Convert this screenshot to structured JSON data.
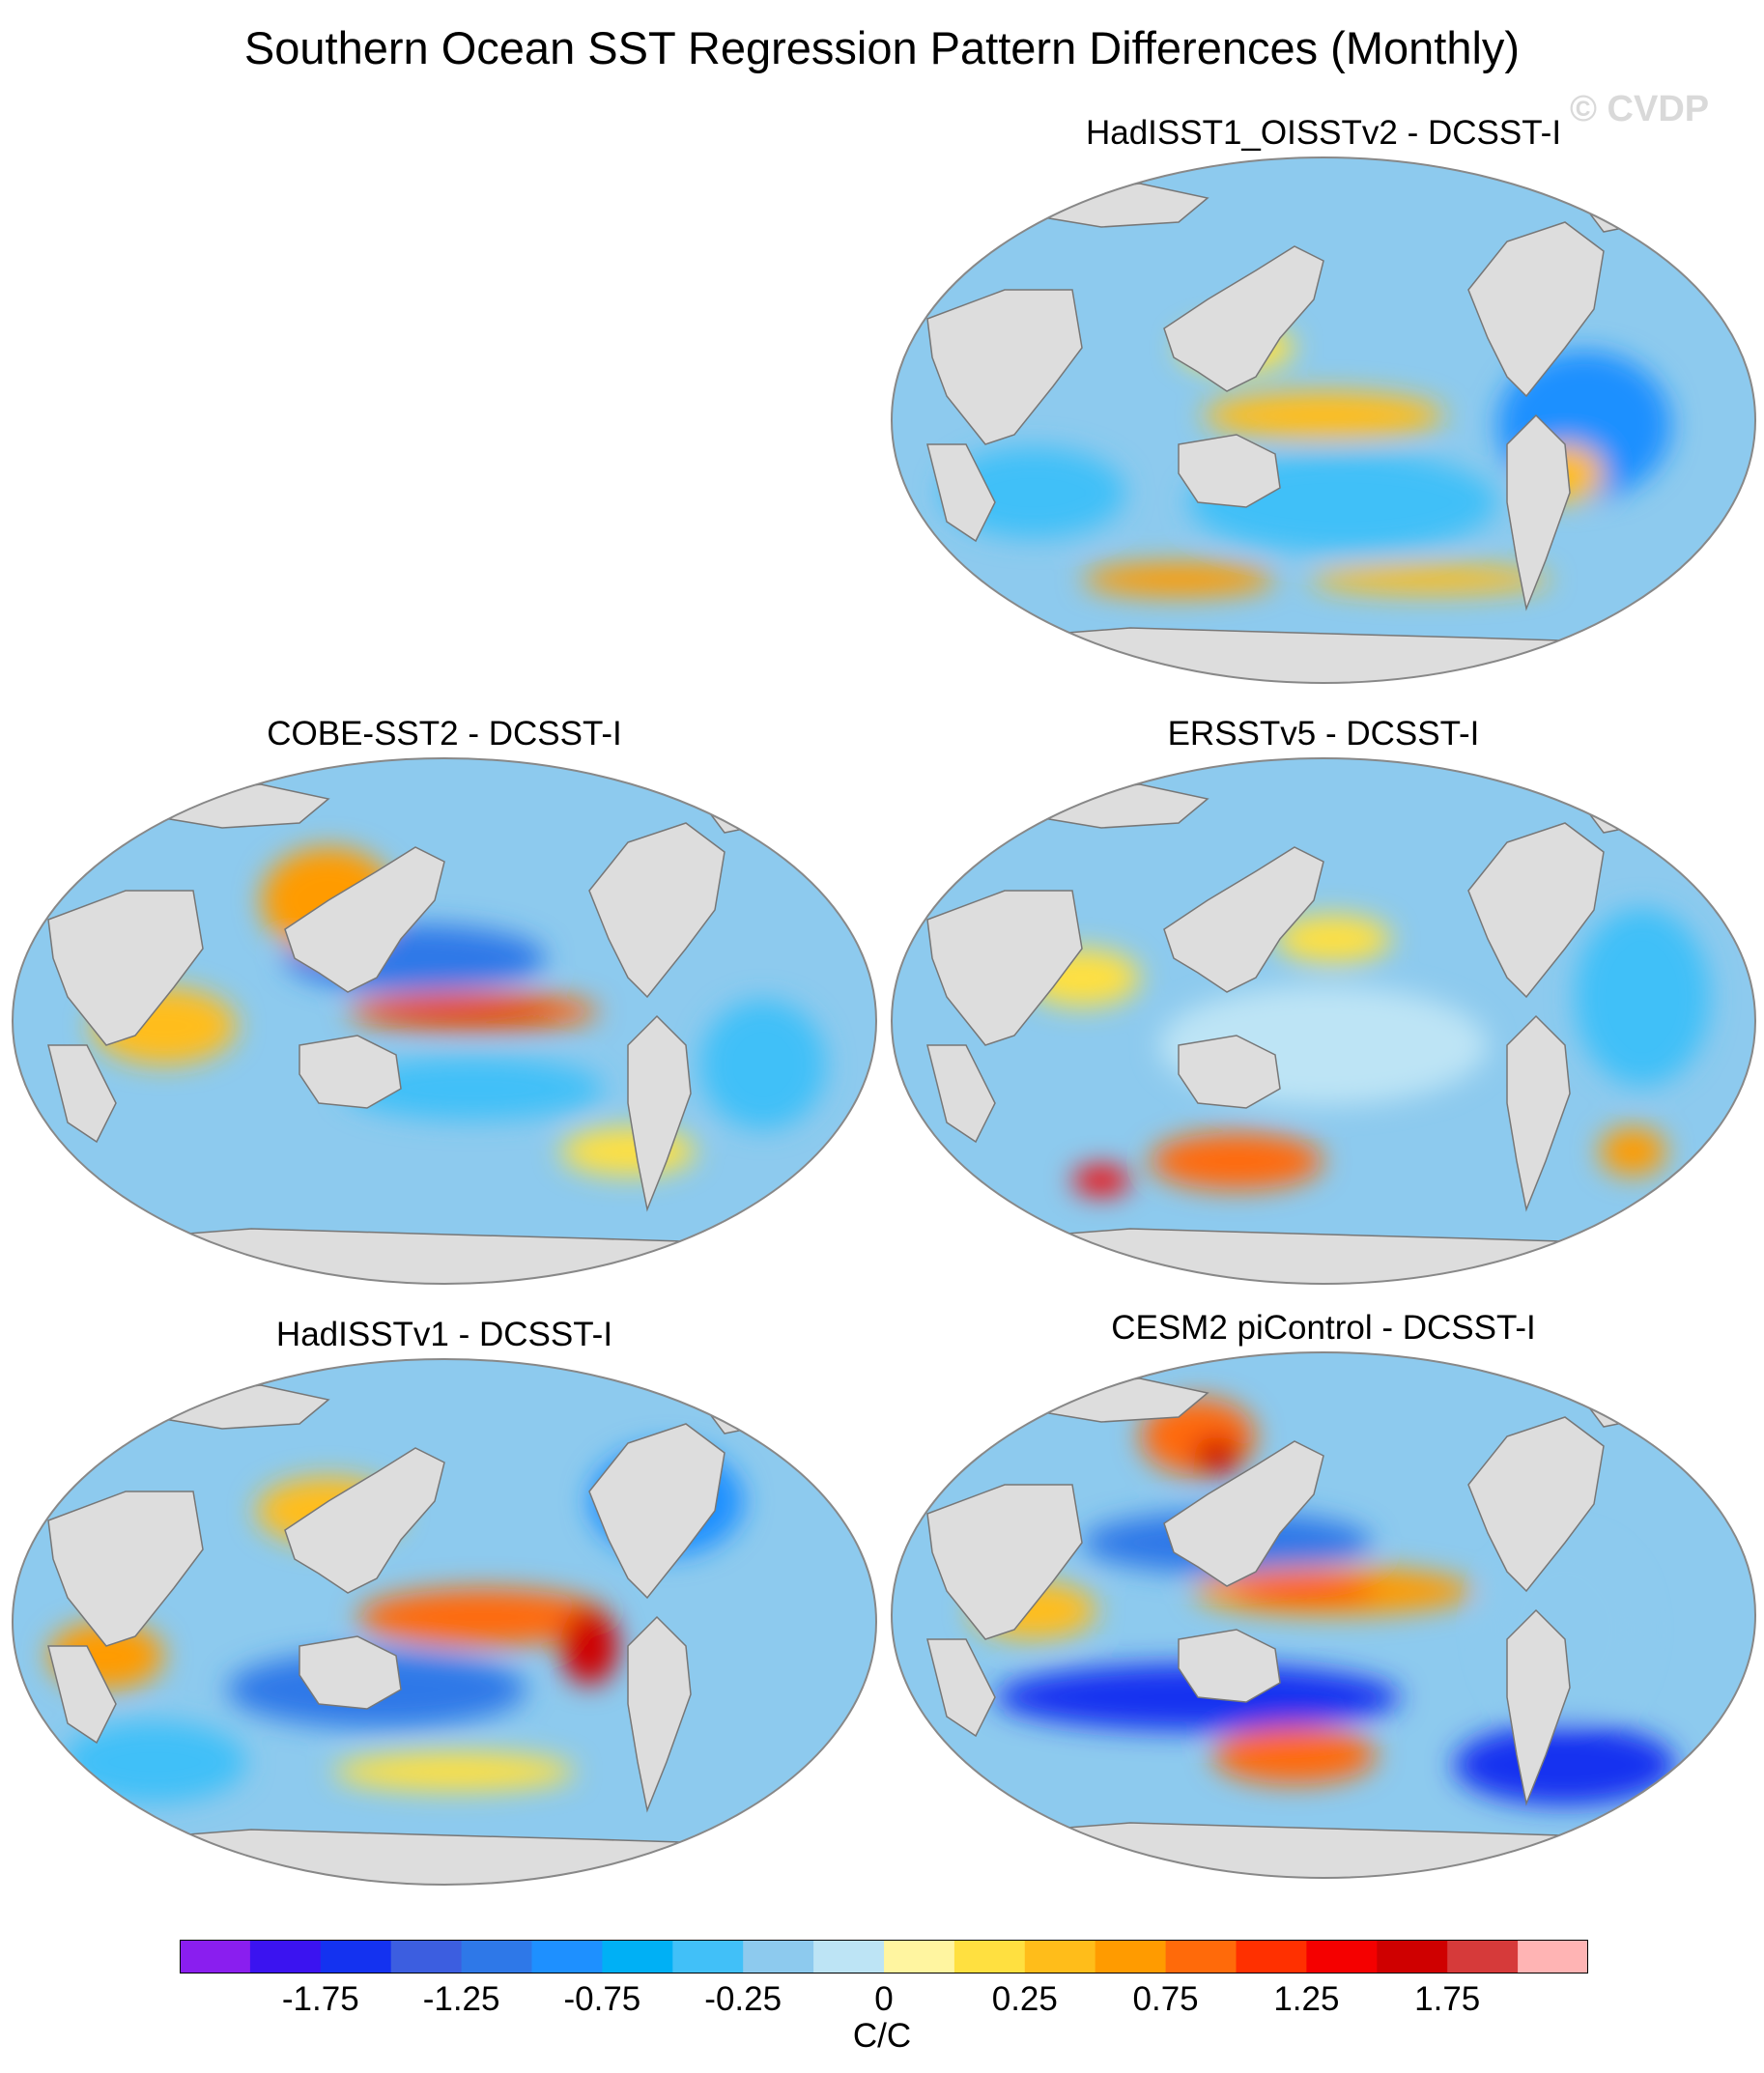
{
  "title": "Southern Ocean SST Regression Pattern Differences (Monthly)",
  "watermark": "© CVDP",
  "panels": [
    {
      "id": "p1",
      "title": "HadISST1_OISSTv2 - DCSST-I",
      "pattern": "mixed"
    },
    {
      "id": "p2",
      "title": "COBE-SST2 - DCSST-I",
      "pattern": "warm-equatorial"
    },
    {
      "id": "p3",
      "title": "ERSSTv5 - DCSST-I",
      "pattern": "weak-southern-warm"
    },
    {
      "id": "p4",
      "title": "HadISSTv1 - DCSST-I",
      "pattern": "warm-east-pacific"
    },
    {
      "id": "p5",
      "title": "CESM2 piControl - DCSST-I",
      "pattern": "dipole"
    }
  ],
  "colorbar": {
    "colors": [
      "#8a1eef",
      "#3b13f0",
      "#1432f0",
      "#3c5ee0",
      "#2e78e8",
      "#1e90ff",
      "#00b0f5",
      "#41c0f8",
      "#8dcaee",
      "#bde4f5",
      "#fff5a0",
      "#ffe040",
      "#ffbd1a",
      "#ff9b00",
      "#ff6a0a",
      "#ff3000",
      "#f50000",
      "#cf0000",
      "#d63a3a",
      "#ffb4b4"
    ],
    "labels": [
      "-1.75",
      "-1.25",
      "-0.75",
      "-0.25",
      "0",
      "0.25",
      "0.75",
      "1.25",
      "1.75"
    ],
    "unit": "C/C"
  },
  "map_colors": {
    "land": "#dddddd",
    "coast": "#777777",
    "frame": "#888888"
  }
}
